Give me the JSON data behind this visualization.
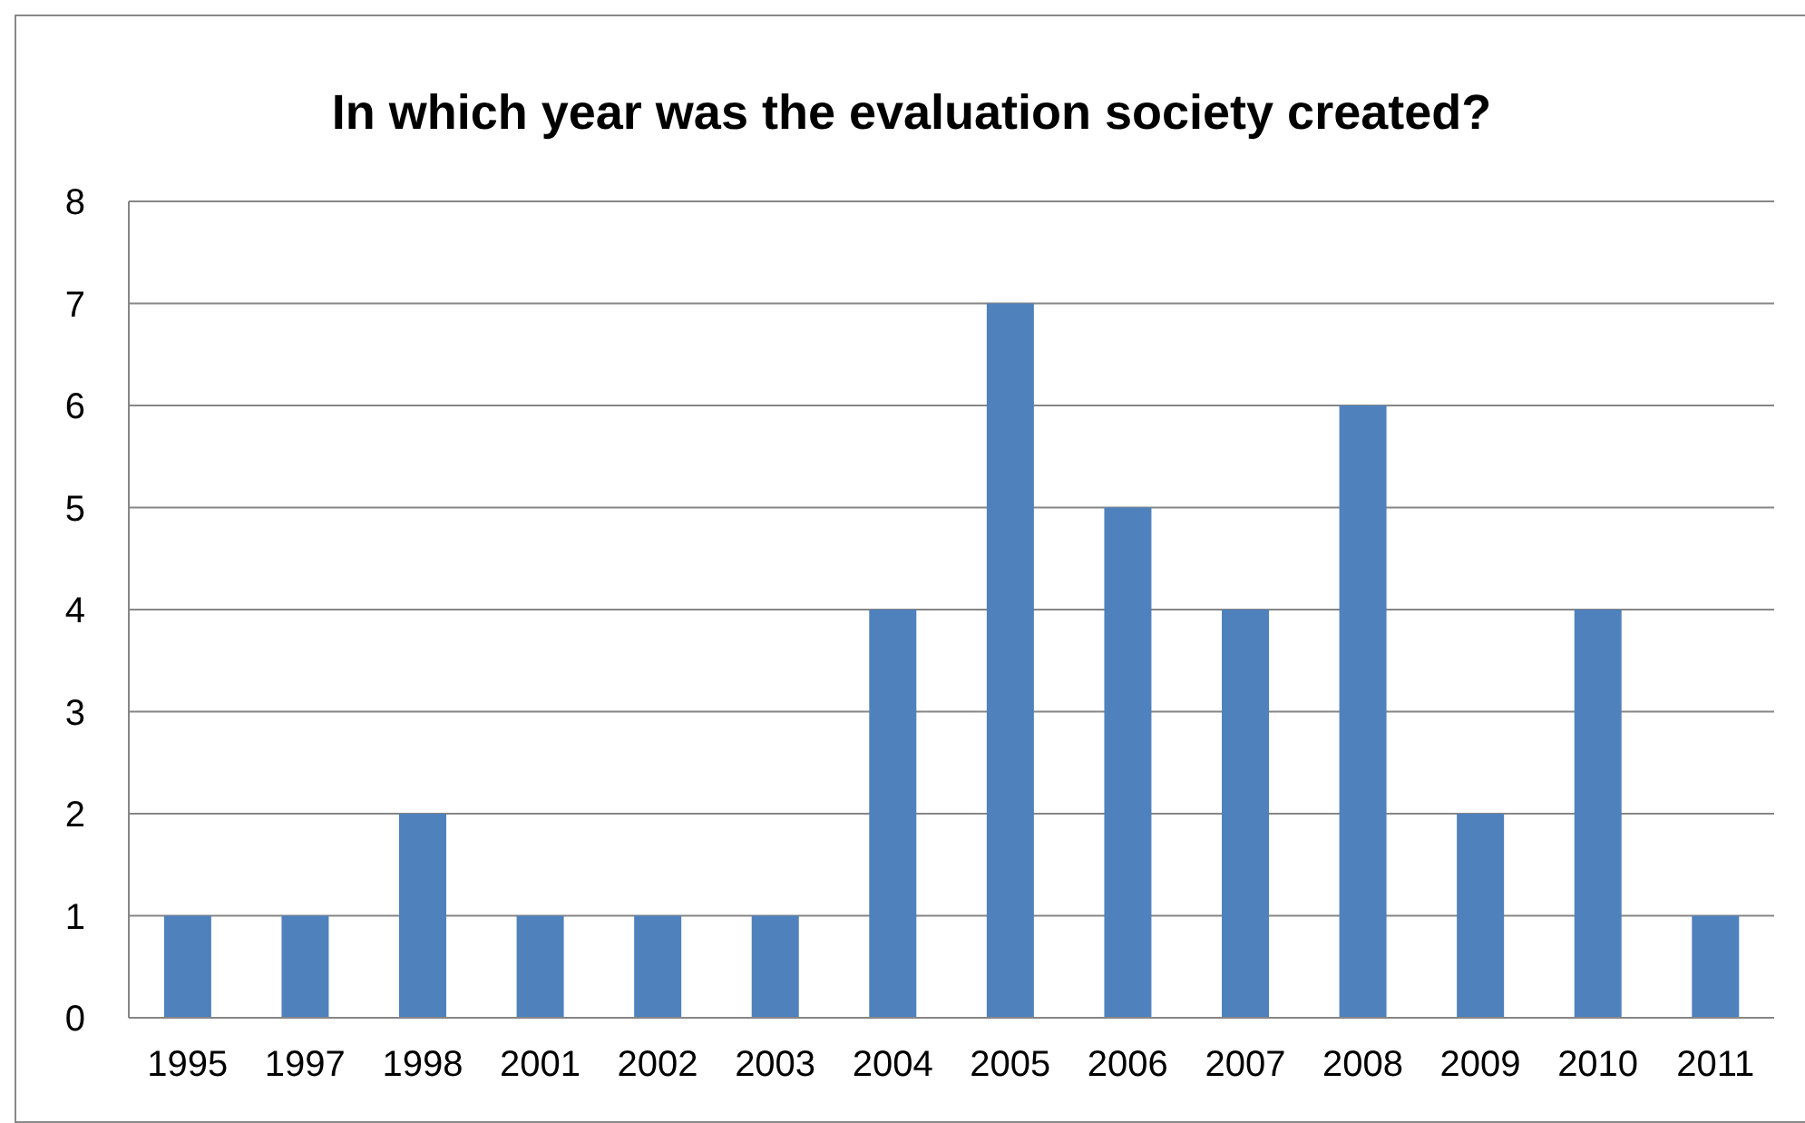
{
  "chart_data": {
    "type": "bar",
    "title": "In which year was the evaluation society created?",
    "categories": [
      "1995",
      "1997",
      "1998",
      "2001",
      "2002",
      "2003",
      "2004",
      "2005",
      "2006",
      "2007",
      "2008",
      "2009",
      "2010",
      "2011"
    ],
    "values": [
      1,
      1,
      2,
      1,
      1,
      1,
      4,
      7,
      5,
      4,
      6,
      2,
      4,
      1
    ],
    "color": "#4f81bd",
    "ylim": [
      0,
      8
    ],
    "yticks": [
      0,
      1,
      2,
      3,
      4,
      5,
      6,
      7,
      8
    ],
    "grid": "y"
  }
}
